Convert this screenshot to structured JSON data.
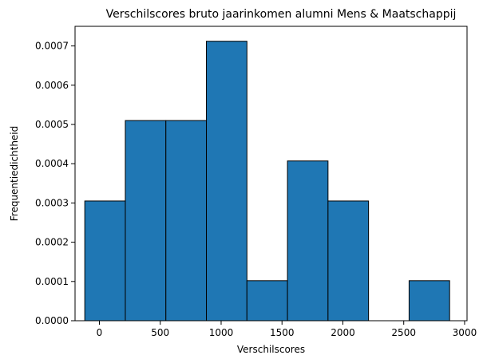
{
  "chart_data": {
    "type": "histogram",
    "title": "Verschilscores bruto jaarinkomen alumni Mens & Maatschappij",
    "xlabel": "Verschilscores",
    "ylabel": "Frequentiedichtheid",
    "xlim": [
      -200,
      3020
    ],
    "ylim": [
      0,
      0.00075
    ],
    "xticks": [
      0,
      500,
      1000,
      1500,
      2000,
      2500,
      3000
    ],
    "xtick_labels": [
      "0",
      "500",
      "1000",
      "1500",
      "2000",
      "2500",
      "3000"
    ],
    "yticks": [
      0,
      0.0001,
      0.0002,
      0.0003,
      0.0004,
      0.0005,
      0.0006,
      0.0007
    ],
    "ytick_labels": [
      "0.0000",
      "0.0001",
      "0.0002",
      "0.0003",
      "0.0004",
      "0.0005",
      "0.0006",
      "0.0007"
    ],
    "bin_edges": [
      -120,
      213,
      546,
      879,
      1212,
      1545,
      1878,
      2211,
      2544,
      2877
    ],
    "values": [
      0.000305,
      0.00051,
      0.00051,
      0.000712,
      0.000102,
      0.000407,
      0.000305,
      0.0,
      0.000102
    ],
    "grid": false,
    "colors": {
      "bar_fill": "#1f77b4",
      "bar_edge": "#000000"
    }
  }
}
